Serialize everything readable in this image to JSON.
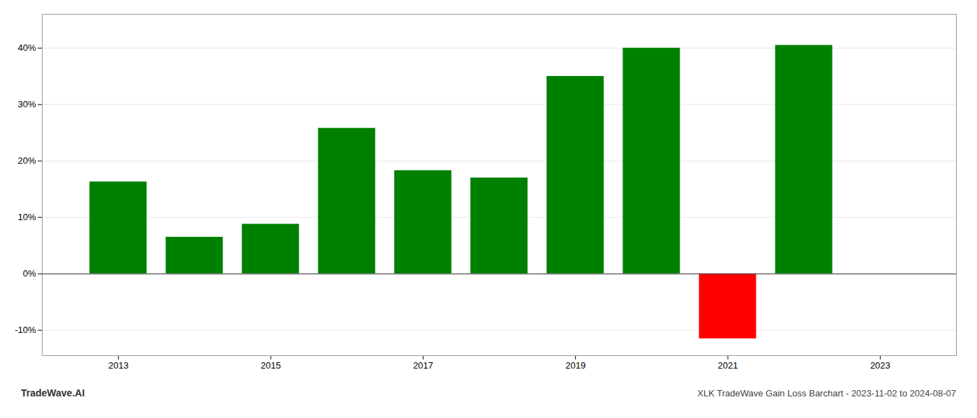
{
  "chart_data": {
    "type": "bar",
    "title": "XLK TradeWave Gain Loss Barchart - 2023-11-02 to 2024-08-07",
    "annotations": [
      "TradeWave.AI"
    ],
    "x": [
      2013,
      2014,
      2015,
      2016,
      2017,
      2018,
      2019,
      2020,
      2021,
      2022
    ],
    "values": [
      0.163,
      0.065,
      0.088,
      0.258,
      0.183,
      0.17,
      0.35,
      0.4,
      -0.115,
      0.405
    ],
    "colors": [
      "#008000",
      "#008000",
      "#008000",
      "#008000",
      "#008000",
      "#008000",
      "#008000",
      "#008000",
      "#ff0000",
      "#008000"
    ],
    "xlim": [
      2012,
      2024
    ],
    "xticks": [
      2013,
      2015,
      2017,
      2019,
      2021,
      2023
    ],
    "ylim": [
      -0.145,
      0.46
    ],
    "yticks": [
      {
        "value": -0.1,
        "label": "-10%"
      },
      {
        "value": 0.0,
        "label": "0%"
      },
      {
        "value": 0.1,
        "label": "10%"
      },
      {
        "value": 0.2,
        "label": "20%"
      },
      {
        "value": 0.3,
        "label": "30%"
      },
      {
        "value": 0.4,
        "label": "40%"
      }
    ],
    "grid": true
  }
}
